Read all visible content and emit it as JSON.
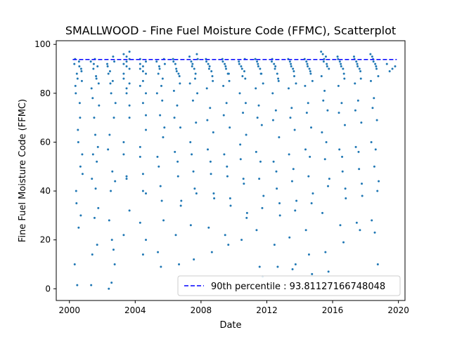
{
  "chart_data": {
    "type": "scatter",
    "title": "SMALLWOOD - Fine Fuel Moisture Code (FFMC), Scatterplot",
    "xlabel": "Date",
    "ylabel": "Fine Fuel Moisture Code (FFMC)",
    "x_type": "year",
    "xlim": [
      1999.2,
      2020.4
    ],
    "ylim": [
      -4.8,
      101.5
    ],
    "xticks": [
      2000,
      2004,
      2008,
      2012,
      2016,
      2020
    ],
    "xtick_labels": [
      "2000",
      "2004",
      "2008",
      "2012",
      "2016",
      "2020"
    ],
    "yticks": [
      0,
      20,
      40,
      60,
      80,
      100
    ],
    "ytick_labels": [
      "0",
      "20",
      "40",
      "60",
      "80",
      "100"
    ],
    "grid": false,
    "legend_position": "lower-right",
    "series": [
      {
        "kind": "points",
        "color": "#1f77b4",
        "seasons": [
          {
            "year": 2000,
            "values": [
              92,
              88,
              91,
              85,
              80,
              60,
              30,
              10,
              1.5,
              76,
              55,
              40,
              25,
              90,
              94,
              86,
              70,
              47,
              35,
              93,
              89,
              83,
              65,
              50
            ]
          },
          {
            "year": 2001,
            "values": [
              93,
              90,
              87,
              84,
              78,
              63,
              58,
              45,
              29,
              18,
              1.5,
              92,
              86,
              75,
              55,
              41,
              33,
              14,
              94,
              91,
              82,
              70,
              52
            ]
          },
          {
            "year": 2002,
            "values": [
              92,
              89,
              85,
              76,
              63,
              48,
              44,
              28,
              20,
              10,
              0,
              2.5,
              93,
              88,
              80,
              70,
              57,
              40,
              16,
              91,
              84,
              95
            ]
          },
          {
            "year": 2003,
            "values": [
              96,
              93,
              90,
              86,
              80,
              70,
              55,
              46,
              32,
              22,
              95,
              94,
              88,
              82,
              75,
              60,
              45,
              97,
              92,
              91,
              84
            ]
          },
          {
            "year": 2004,
            "values": [
              94,
              91,
              88,
              83,
              76,
              65,
              58,
              47,
              39,
              27,
              14,
              93,
              90,
              85,
              71,
              54,
              40,
              20,
              92,
              89,
              80
            ]
          },
          {
            "year": 2005,
            "values": [
              93,
              90,
              86,
              80,
              71,
              62,
              54,
              42,
              28,
              15,
              9,
              94,
              88,
              83,
              66,
              50,
              36,
              92,
              91,
              77
            ]
          },
          {
            "year": 2006,
            "values": [
              94,
              90,
              87,
              81,
              75,
              66,
              56,
              46,
              36,
              22,
              10,
              93,
              89,
              84,
              70,
              52,
              34,
              92,
              88
            ]
          },
          {
            "year": 2007,
            "values": [
              95,
              92,
              88,
              84,
              77,
              68,
              60,
              48,
              39,
              26,
              12,
              96,
              93,
              90,
              80,
              55,
              41,
              94,
              91,
              86
            ]
          },
          {
            "year": 2008,
            "values": [
              94,
              90,
              87,
              82,
              74,
              64,
              57,
              47,
              37,
              25,
              15,
              93,
              91,
              85,
              69,
              52,
              39,
              92,
              89
            ]
          },
          {
            "year": 2009,
            "values": [
              94,
              91,
              88,
              83,
              76,
              66,
              55,
              46,
              34,
              22,
              18,
              93,
              90,
              85,
              71,
              50,
              37,
              92,
              88
            ]
          },
          {
            "year": 2010,
            "values": [
              93,
              90,
              86,
              80,
              72,
              63,
              53,
              43,
              31,
              20,
              94,
              92,
              87,
              76,
              59,
              45,
              29,
              91,
              89
            ]
          },
          {
            "year": 2011,
            "values": [
              94,
              91,
              88,
              82,
              75,
              67,
              56,
              45,
              33,
              24,
              9,
              5,
              93,
              90,
              84,
              70,
              52,
              38,
              92,
              88
            ]
          },
          {
            "year": 2012,
            "values": [
              93,
              90,
              86,
              80,
              73,
              62,
              52,
              41,
              30,
              18,
              9,
              94,
              91,
              85,
              69,
              48,
              35,
              92,
              88
            ]
          },
          {
            "year": 2013,
            "values": [
              94,
              91,
              87,
              82,
              74,
              65,
              55,
              44,
              32,
              21,
              8,
              10,
              93,
              90,
              84,
              70,
              49,
              36,
              92,
              89
            ]
          },
          {
            "year": 2014,
            "values": [
              94,
              91,
              88,
              83,
              76,
              66,
              57,
              46,
              35,
              24,
              14,
              6,
              93,
              90,
              85,
              72,
              54,
              39,
              92,
              89
            ]
          },
          {
            "year": 2015,
            "values": [
              97,
              94,
              91,
              87,
              81,
              73,
              64,
              53,
              42,
              31,
              15,
              7,
              96,
              95,
              90,
              77,
              60,
              45,
              93,
              92
            ]
          },
          {
            "year": 2016,
            "values": [
              95,
              92,
              88,
              83,
              76,
              67,
              57,
              48,
              37,
              26,
              19,
              94,
              91,
              86,
              72,
              54,
              41,
              93,
              90
            ]
          },
          {
            "year": 2017,
            "values": [
              95,
              92,
              89,
              84,
              77,
              68,
              58,
              49,
              38,
              27,
              24,
              94,
              91,
              86,
              73,
              56,
              43,
              93,
              90
            ]
          },
          {
            "year": 2018,
            "values": [
              96,
              93,
              90,
              85,
              78,
              69,
              60,
              50,
              40,
              28,
              23,
              10,
              95,
              92,
              87,
              74,
              57,
              44,
              94,
              91
            ]
          },
          {
            "year": 2019,
            "values": [
              92,
              91,
              90,
              89
            ]
          }
        ]
      },
      {
        "kind": "hline",
        "name": "90th percentile : 93.81127166748048",
        "value": 93.81127166748048,
        "color": "#0000ff",
        "style": "dashed"
      }
    ]
  }
}
